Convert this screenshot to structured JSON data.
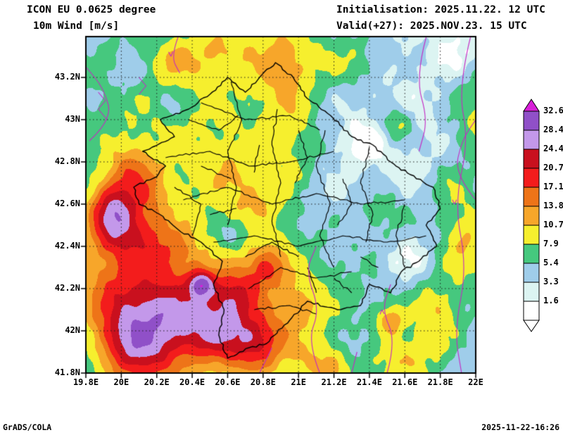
{
  "header": {
    "model_line": "ICON EU 0.0625 degree",
    "variable_line": "10m Wind [m/s]",
    "init_line": "Initialisation: 2025.11.22. 12 UTC",
    "valid_line": "Valid(+27): 2025.NOV.23. 15 UTC"
  },
  "footer": {
    "credit": "GrADS/COLA",
    "created": "2025-11-22-16:26"
  },
  "axes": {
    "x_ticks": [
      "19.8E",
      "20E",
      "20.2E",
      "20.4E",
      "20.6E",
      "20.8E",
      "21E",
      "21.2E",
      "21.4E",
      "21.6E",
      "21.8E",
      "22E"
    ],
    "y_ticks": [
      "43.2N",
      "43N",
      "42.8N",
      "42.6N",
      "42.4N",
      "42.2N",
      "42N",
      "41.8N"
    ]
  },
  "colorbar": {
    "labels": [
      "32.6",
      "28.4",
      "24.4",
      "20.7",
      "17.1",
      "13.8",
      "10.7",
      "7.9",
      "5.4",
      "3.3",
      "1.6"
    ],
    "band_colors_bottom_to_top": [
      "#ffffff",
      "#dcf4f2",
      "#9fcdea",
      "#46c87e",
      "#f6ef2e",
      "#f7a62a",
      "#ee7418",
      "#f31c1c",
      "#c9101e",
      "#c398ea",
      "#9050c8"
    ],
    "over_arrow_color": "#d81fd8",
    "under_arrow_color": "#ffffff"
  },
  "map": {
    "grid_color": "#1a1a1a",
    "boundary_color": "#000000",
    "streamline_color": "#c428c4"
  },
  "chart_data": {
    "type": "heatmap",
    "subtype": "filled-contour weather map",
    "title": "ICON EU 0.0625 degree - 10m Wind [m/s]",
    "variable": "10m Wind",
    "units": "m/s",
    "model": "ICON EU 0.0625 degree",
    "initialisation": "2025.11.22. 12 UTC",
    "valid": "2025.NOV.23. 15 UTC",
    "forecast_offset_hours": 27,
    "lon_range": [
      19.8,
      22.0
    ],
    "lat_range": [
      41.8,
      43.2
    ],
    "grid_spacing_deg": 0.2,
    "contour_levels_ms": [
      1.6,
      3.3,
      5.4,
      7.9,
      10.7,
      13.8,
      17.1,
      20.7,
      24.4,
      28.4,
      32.6
    ],
    "region": "Kosovo and surrounding Balkans",
    "overlays": [
      "administrative boundaries",
      "wind streamlines"
    ],
    "pattern_summary": "Strong wind cores 17-25 m/s in the southwest and west, orange-yellow bands along the west edge and north-center, moderate yellow patches on the east edge, light winds 2-5 m/s over the northeast half with small calm white pockets."
  }
}
